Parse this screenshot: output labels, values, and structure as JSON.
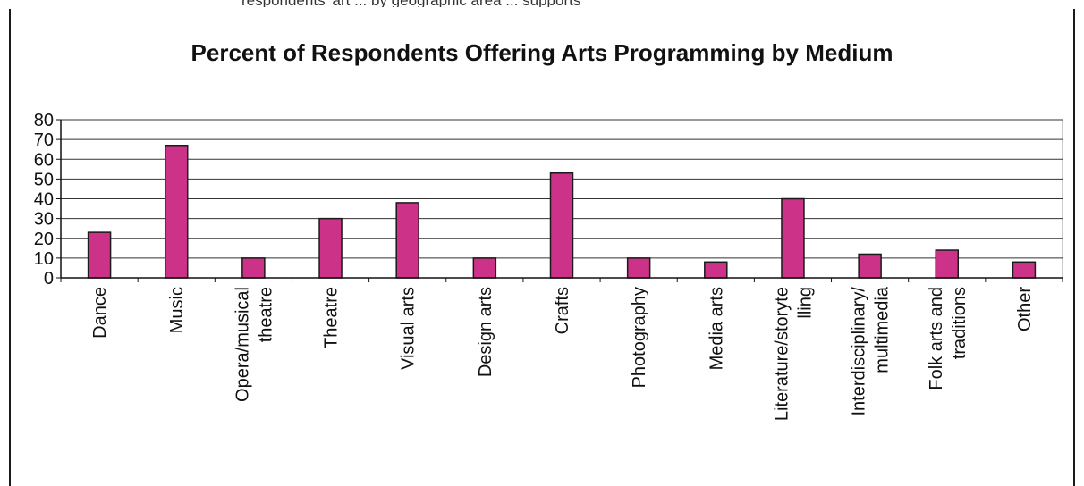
{
  "header": {
    "top_caption": "respondents' art ... by geographic area ... supports"
  },
  "chart_data": {
    "type": "bar",
    "title": "Percent of Respondents Offering Arts Programming by Medium",
    "xlabel": "",
    "ylabel": "",
    "ylim": [
      0,
      80
    ],
    "yticks": [
      0,
      10,
      20,
      30,
      40,
      50,
      60,
      70,
      80
    ],
    "grid": true,
    "legend": "none",
    "bar_color": "#cc3388",
    "bar_edge_color": "#1a1a1a",
    "plot_background": "#ffffff",
    "categories": [
      [
        "Dance"
      ],
      [
        "Music"
      ],
      [
        "Opera/musical",
        "theatre"
      ],
      [
        "Theatre"
      ],
      [
        "Visual arts"
      ],
      [
        "Design arts"
      ],
      [
        "Crafts"
      ],
      [
        "Photography"
      ],
      [
        "Media arts"
      ],
      [
        "Literature/storyte",
        "lling"
      ],
      [
        "Interdisciplinary/",
        "multimedia"
      ],
      [
        "Folk arts and",
        "traditions"
      ],
      [
        "Other"
      ]
    ],
    "values": [
      23,
      67,
      10,
      30,
      38,
      10,
      53,
      10,
      8,
      40,
      12,
      14,
      8
    ]
  }
}
